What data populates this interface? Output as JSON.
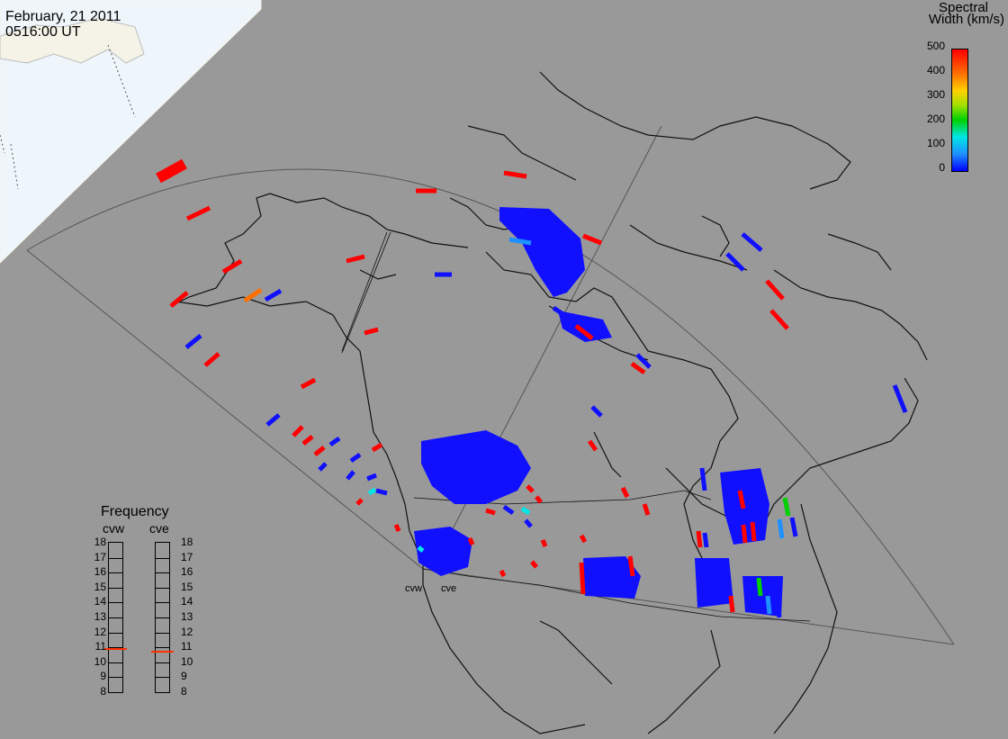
{
  "header": {
    "date": "February, 21 2011",
    "time": "0516:00 UT"
  },
  "colorbar": {
    "title_line1": "Spectral",
    "title_line2": "Width (km/s)",
    "ticks": [
      "500",
      "400",
      "300",
      "200",
      "100",
      "0"
    ],
    "colors": [
      "#0000ff",
      "#1e90ff",
      "#00e6e6",
      "#00d000",
      "#ffd000",
      "#ff7000",
      "#ff0000"
    ]
  },
  "frequency": {
    "title": "Frequency",
    "radars": [
      {
        "name": "cvw",
        "current_mhz": 10.9
      },
      {
        "name": "cve",
        "current_mhz": 10.7
      }
    ],
    "scale": [
      "18",
      "17",
      "16",
      "15",
      "14",
      "13",
      "12",
      "11",
      "10",
      "9",
      "8"
    ]
  },
  "sites": [
    "cvw",
    "cve"
  ],
  "colors": {
    "land": "#999999",
    "ocean_night": "#e8f4fb",
    "day": "#f4f2e8",
    "low_width": "#1010ff",
    "high_width": "#ff0000"
  }
}
